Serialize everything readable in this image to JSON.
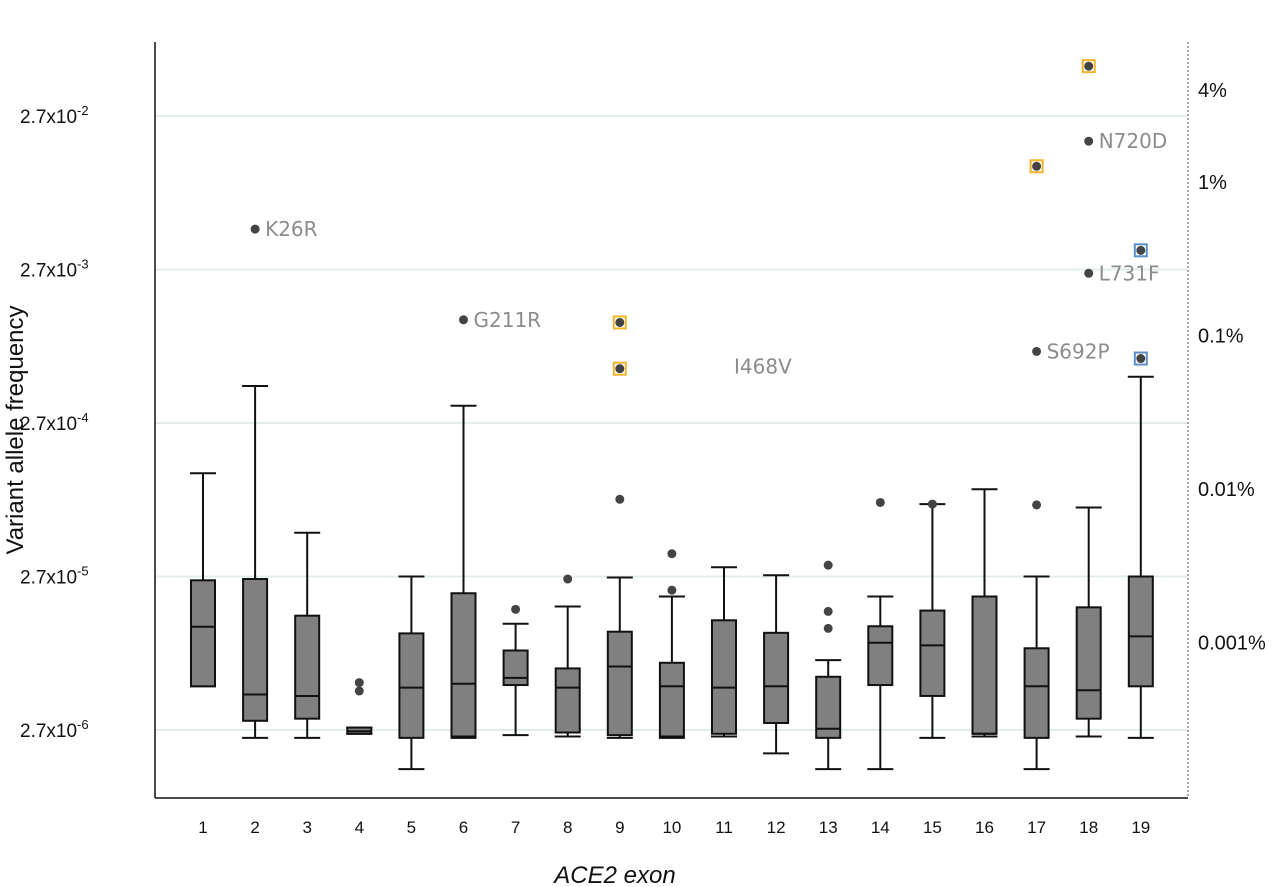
{
  "chart_data": {
    "type": "box",
    "xlabel": "ACE2 exon",
    "ylabel": "Variant allele frequency",
    "yscale": "log",
    "ylim": [
      5.5e-07,
      0.11
    ],
    "y_ticks": [
      {
        "value": 2.7e-06,
        "mantissa": "2.7x10",
        "exp": "-6"
      },
      {
        "value": 2.7e-05,
        "mantissa": "2.7x10",
        "exp": "-5"
      },
      {
        "value": 0.00027,
        "mantissa": "2.7x10",
        "exp": "-4"
      },
      {
        "value": 0.0027,
        "mantissa": "2.7x10",
        "exp": "-3"
      },
      {
        "value": 0.027,
        "mantissa": "2.7x10",
        "exp": "-2"
      }
    ],
    "right_axis_labels": [
      {
        "value": 0.04,
        "label": "4%"
      },
      {
        "value": 0.01,
        "label": "1%"
      },
      {
        "value": 0.001,
        "label": "0.1%"
      },
      {
        "value": 0.0001,
        "label": "0.01%"
      },
      {
        "value": 1e-05,
        "label": "0.001%"
      }
    ],
    "grid": "horizontal",
    "box_color": "#808080",
    "highlight_colors": {
      "yellow": "#f0b429",
      "blue": "#5b8fc9"
    },
    "categories": [
      "1",
      "2",
      "3",
      "4",
      "5",
      "6",
      "7",
      "8",
      "9",
      "10",
      "11",
      "12",
      "13",
      "14",
      "15",
      "16",
      "17",
      "18",
      "19"
    ],
    "boxes": [
      {
        "min": 5.2e-06,
        "q1": 5.2e-06,
        "median": 1.27e-05,
        "q3": 2.55e-05,
        "max": 0.000127
      },
      {
        "min": 2.4e-06,
        "q1": 3.1e-06,
        "median": 4.6e-06,
        "q3": 2.6e-05,
        "max": 0.00047
      },
      {
        "min": 2.4e-06,
        "q1": 3.2e-06,
        "median": 4.5e-06,
        "q3": 1.5e-05,
        "max": 5.2e-05
      },
      {
        "min": 2.55e-06,
        "q1": 2.55e-06,
        "median": 2.65e-06,
        "q3": 2.8e-06,
        "max": 2.8e-06
      },
      {
        "min": 1.5e-06,
        "q1": 2.4e-06,
        "median": 5.1e-06,
        "q3": 1.15e-05,
        "max": 2.7e-05
      },
      {
        "min": 2.4e-06,
        "q1": 2.45e-06,
        "median": 5.4e-06,
        "q3": 2.1e-05,
        "max": 0.00035
      },
      {
        "min": 2.5e-06,
        "q1": 5.3e-06,
        "median": 5.9e-06,
        "q3": 8.9e-06,
        "max": 1.33e-05
      },
      {
        "min": 2.45e-06,
        "q1": 2.6e-06,
        "median": 5.1e-06,
        "q3": 6.8e-06,
        "max": 1.72e-05
      },
      {
        "min": 2.4e-06,
        "q1": 2.5e-06,
        "median": 7e-06,
        "q3": 1.18e-05,
        "max": 2.66e-05
      },
      {
        "min": 2.4e-06,
        "q1": 2.45e-06,
        "median": 5.2e-06,
        "q3": 7.4e-06,
        "max": 2e-05
      },
      {
        "min": 2.45e-06,
        "q1": 2.55e-06,
        "median": 5.1e-06,
        "q3": 1.4e-05,
        "max": 3.1e-05
      },
      {
        "min": 1.9e-06,
        "q1": 3e-06,
        "median": 5.2e-06,
        "q3": 1.16e-05,
        "max": 2.75e-05
      },
      {
        "min": 1.5e-06,
        "q1": 2.4e-06,
        "median": 2.75e-06,
        "q3": 6e-06,
        "max": 7.7e-06
      },
      {
        "min": 1.5e-06,
        "q1": 5.3e-06,
        "median": 1e-05,
        "q3": 1.28e-05,
        "max": 2e-05
      },
      {
        "min": 2.4e-06,
        "q1": 4.5e-06,
        "median": 9.6e-06,
        "q3": 1.62e-05,
        "max": 8e-05
      },
      {
        "min": 2.45e-06,
        "q1": 2.55e-06,
        "median": 2.55e-06,
        "q3": 2e-05,
        "max": 0.0001
      },
      {
        "min": 1.5e-06,
        "q1": 2.4e-06,
        "median": 5.2e-06,
        "q3": 9.2e-06,
        "max": 2.7e-05
      },
      {
        "min": 2.45e-06,
        "q1": 3.2e-06,
        "median": 4.9e-06,
        "q3": 1.7e-05,
        "max": 7.6e-05
      },
      {
        "min": 2.4e-06,
        "q1": 5.2e-06,
        "median": 1.1e-05,
        "q3": 2.7e-05,
        "max": 0.00054
      }
    ],
    "outliers": [
      {
        "exon": "2",
        "value": 0.00495,
        "label": "K26R"
      },
      {
        "exon": "4",
        "value": 5.5e-06
      },
      {
        "exon": "4",
        "value": 4.85e-06
      },
      {
        "exon": "6",
        "value": 0.00127,
        "label": "G211R"
      },
      {
        "exon": "7",
        "value": 1.65e-05
      },
      {
        "exon": "8",
        "value": 2.6e-05
      },
      {
        "exon": "9",
        "value": 0.00122,
        "highlight": "yellow"
      },
      {
        "exon": "9",
        "value": 0.00061,
        "highlight": "yellow"
      },
      {
        "exon": "9",
        "value": 8.6e-05
      },
      {
        "exon": "10",
        "value": 3.8e-05
      },
      {
        "exon": "10",
        "value": 2.2e-05
      },
      {
        "exon": "13",
        "value": 3.2e-05
      },
      {
        "exon": "13",
        "value": 1.6e-05
      },
      {
        "exon": "13",
        "value": 1.24e-05
      },
      {
        "exon": "14",
        "value": 8.2e-05
      },
      {
        "exon": "15",
        "value": 8e-05
      },
      {
        "exon": "17",
        "value": 0.00079,
        "label": "S692P"
      },
      {
        "exon": "17",
        "value": 0.0127,
        "highlight": "yellow"
      },
      {
        "exon": "17",
        "value": 7.9e-05
      },
      {
        "exon": "18",
        "value": 0.057,
        "highlight": "yellow"
      },
      {
        "exon": "18",
        "value": 0.0185,
        "label": "N720D"
      },
      {
        "exon": "18",
        "value": 0.00255,
        "label": "L731F"
      },
      {
        "exon": "19",
        "value": 0.0036,
        "highlight": "blue"
      },
      {
        "exon": "19",
        "value": 0.00071,
        "highlight": "blue"
      }
    ],
    "free_labels": [
      {
        "exon": "11",
        "value": 0.00063,
        "label": "I468V"
      }
    ]
  }
}
